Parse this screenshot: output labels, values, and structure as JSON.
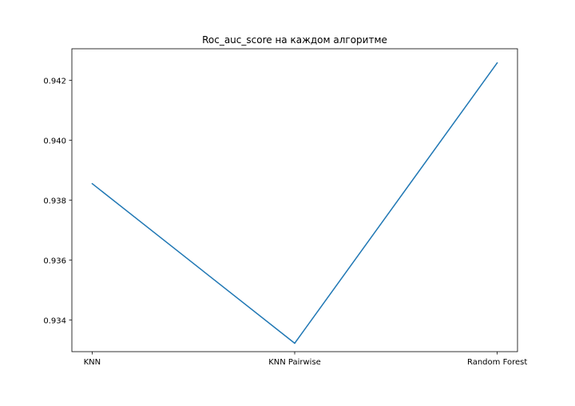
{
  "chart_data": {
    "type": "line",
    "title": "Roc_auc_score на каждом алгоритме",
    "xlabel": "",
    "ylabel": "",
    "categories": [
      "KNN",
      "KNN Pairwise",
      "Random Forest"
    ],
    "series": [
      {
        "values": [
          0.93855,
          0.93322,
          0.94258
        ],
        "color": "#1f77b4"
      }
    ],
    "ylim": [
      0.93294,
      0.94305
    ],
    "yticks": [
      0.934,
      0.936,
      0.938,
      0.94,
      0.942
    ],
    "ytick_labels": [
      "0.934",
      "0.936",
      "0.938",
      "0.940",
      "0.942"
    ],
    "grid": false,
    "legend": "none"
  }
}
